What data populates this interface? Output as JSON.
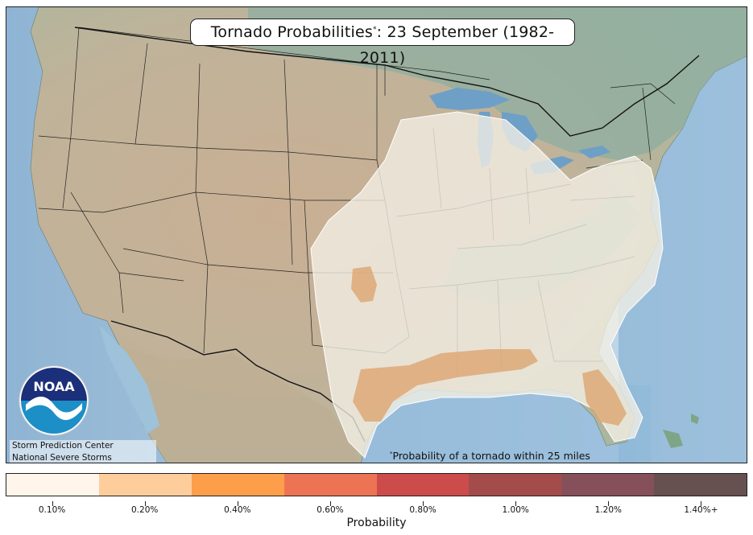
{
  "title": {
    "main": "Tornado Probabilities",
    "star": "*",
    "rest": ": 23 September (1982-2011)"
  },
  "credits": {
    "line1": "Storm Prediction Center",
    "line2": "National Severe Storms Laboratory"
  },
  "logo": {
    "text": "NOAA"
  },
  "footnote": {
    "star": "*",
    "text": "Probability of a tornado within 25 miles"
  },
  "colorbar": {
    "title": "Probability",
    "labels": [
      "0.10%",
      "0.20%",
      "0.40%",
      "0.60%",
      "0.80%",
      "1.00%",
      "1.20%",
      "1.40%+"
    ],
    "colors": [
      "#fff5ea",
      "#fecd9c",
      "#fd9f4a",
      "#ec7455",
      "#cc4c4c",
      "#a44c4c",
      "#86505a",
      "#665050"
    ]
  },
  "map": {
    "colors": {
      "land": "#c4b49b",
      "water": "#a9c9e0",
      "forest": "#7fa596",
      "contour_fill": "#efece4",
      "high_fill": "#dba36b"
    }
  }
}
